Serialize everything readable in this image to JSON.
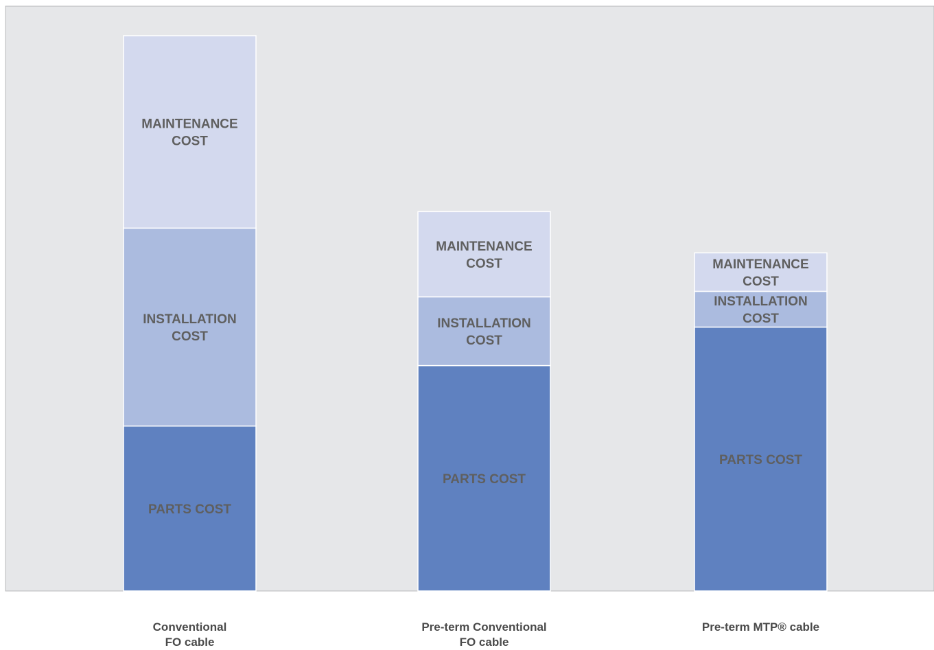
{
  "chart_data": {
    "type": "bar",
    "stacked": true,
    "title": "",
    "xlabel": "",
    "ylabel": "",
    "ylim": [
      0,
      100
    ],
    "grid": false,
    "legend": "none",
    "categories": [
      [
        "Conventional",
        "FO cable"
      ],
      [
        "Pre-term Conventional",
        "FO cable"
      ],
      [
        "Pre-term MTP® cable"
      ]
    ],
    "series": [
      {
        "label": [
          "PARTS COST"
        ],
        "color": "#5f81c0",
        "values": [
          30,
          41,
          48
        ]
      },
      {
        "label": [
          "INSTALLATION",
          "COST"
        ],
        "color": "#abbbdf",
        "values": [
          36,
          12.5,
          6.5
        ]
      },
      {
        "label": [
          "MAINTENANCE",
          "COST"
        ],
        "color": "#d3d9ee",
        "values": [
          35,
          15.5,
          7
        ]
      }
    ],
    "background": "#e6e7e9"
  }
}
